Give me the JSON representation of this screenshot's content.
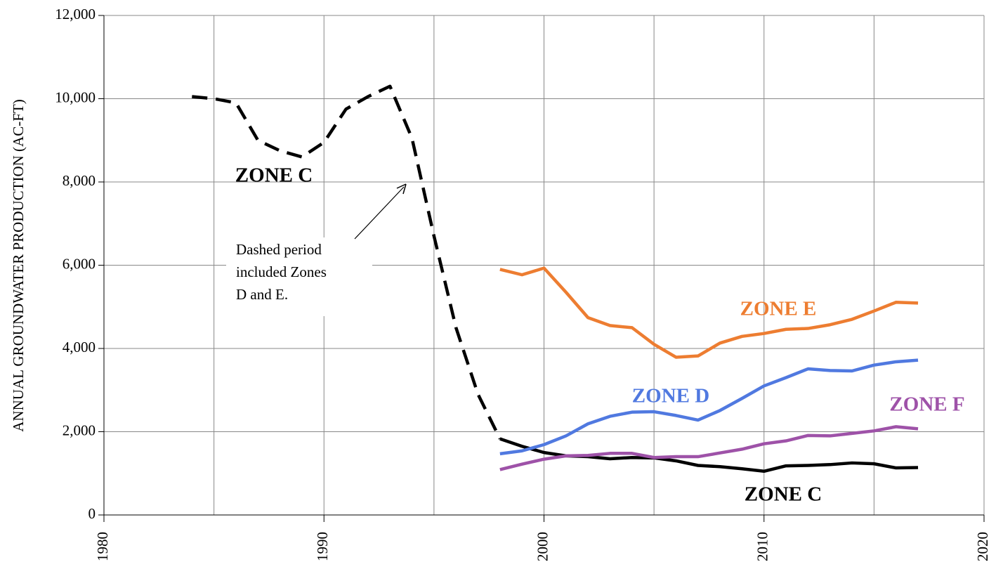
{
  "chart_data": {
    "type": "line",
    "ylabel": "ANNUAL GROUNDWATER PRODUCTION (AC-FT)",
    "xlim": [
      1980,
      2020
    ],
    "xticks": [
      1980,
      1990,
      2000,
      2010,
      2020
    ],
    "xgrid": [
      1980,
      1985,
      1990,
      1995,
      2000,
      2005,
      2010,
      2015,
      2020
    ],
    "ylim": [
      0,
      12000
    ],
    "yticks": [
      0,
      {
        "value": 2000,
        "label": "2,000"
      },
      {
        "value": 4000,
        "label": "4,000"
      },
      {
        "value": 6000,
        "label": "6,000"
      },
      {
        "value": 8000,
        "label": "8,000"
      },
      {
        "value": 10000,
        "label": "10,000"
      },
      {
        "value": 12000,
        "label": "12,000"
      }
    ],
    "grid": true,
    "series": [
      {
        "name": "ZONE C",
        "color": "#000000",
        "dashed": true,
        "x": [
          1984,
          1985,
          1986,
          1987,
          1988,
          1989,
          1990,
          1991,
          1992,
          1993,
          1994,
          1995,
          1996,
          1997,
          1998
        ],
        "values": [
          10050,
          10000,
          9900,
          9000,
          8750,
          8600,
          8950,
          9750,
          10050,
          10300,
          9050,
          6700,
          4500,
          2900,
          1830
        ]
      },
      {
        "name": "ZONE C",
        "color": "#000000",
        "x": [
          1998,
          1999,
          2000,
          2001,
          2002,
          2003,
          2004,
          2005,
          2006,
          2007,
          2008,
          2009,
          2010,
          2011,
          2012,
          2013,
          2014,
          2015,
          2016,
          2017
        ],
        "values": [
          1830,
          1650,
          1500,
          1420,
          1400,
          1350,
          1380,
          1370,
          1300,
          1190,
          1160,
          1110,
          1050,
          1180,
          1190,
          1210,
          1250,
          1230,
          1130,
          1140
        ]
      },
      {
        "name": "ZONE E",
        "color": "#ed7d31",
        "x": [
          1998,
          1999,
          2000,
          2001,
          2002,
          2003,
          2004,
          2005,
          2006,
          2007,
          2008,
          2009,
          2010,
          2011,
          2012,
          2013,
          2014,
          2015,
          2016,
          2017
        ],
        "values": [
          5900,
          5770,
          5930,
          5350,
          4740,
          4550,
          4500,
          4100,
          3790,
          3820,
          4130,
          4290,
          4360,
          4460,
          4480,
          4570,
          4700,
          4900,
          5110,
          5090
        ]
      },
      {
        "name": "ZONE D",
        "color": "#5079e0",
        "x": [
          1998,
          1999,
          2000,
          2001,
          2002,
          2003,
          2004,
          2005,
          2006,
          2007,
          2008,
          2009,
          2010,
          2011,
          2012,
          2013,
          2014,
          2015,
          2016,
          2017
        ],
        "values": [
          1470,
          1540,
          1690,
          1900,
          2190,
          2370,
          2470,
          2480,
          2390,
          2280,
          2510,
          2800,
          3100,
          3300,
          3510,
          3470,
          3460,
          3600,
          3680,
          3720
        ]
      },
      {
        "name": "ZONE F",
        "color": "#9e52a8",
        "x": [
          1998,
          1999,
          2000,
          2001,
          2002,
          2003,
          2004,
          2005,
          2006,
          2007,
          2008,
          2009,
          2010,
          2011,
          2012,
          2013,
          2014,
          2015,
          2016,
          2017
        ],
        "values": [
          1090,
          1220,
          1340,
          1420,
          1430,
          1480,
          1480,
          1380,
          1400,
          1400,
          1490,
          1580,
          1710,
          1780,
          1910,
          1900,
          1960,
          2020,
          2120,
          2070
        ]
      }
    ],
    "annotation": [
      "Dashed period",
      "included Zones",
      "D and E."
    ]
  }
}
